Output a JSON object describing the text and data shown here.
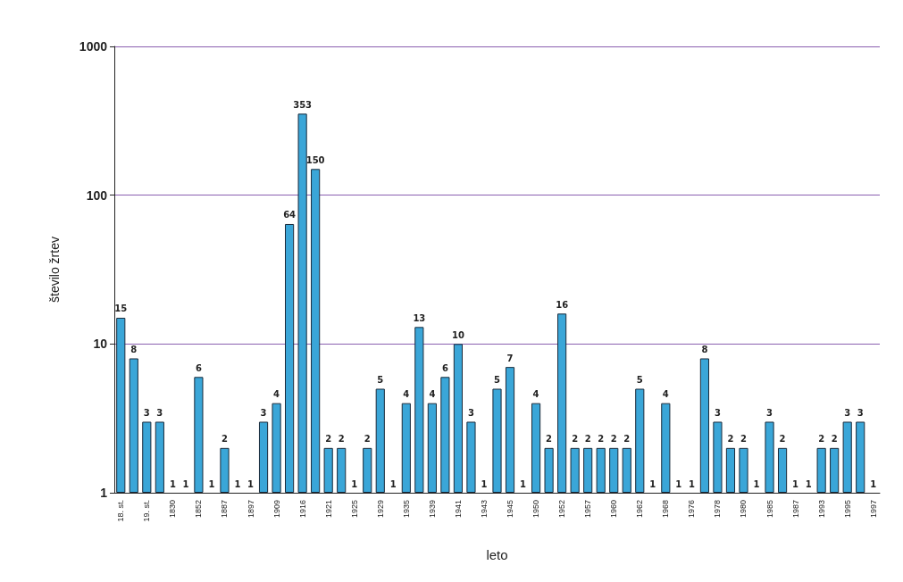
{
  "chart_data": {
    "type": "bar",
    "xlabel": "leto",
    "ylabel": "število žrtev",
    "categories": [
      "18. st.",
      null,
      "19. st.",
      null,
      "1830",
      null,
      "1852",
      null,
      "1887",
      null,
      "1897",
      null,
      "1909",
      null,
      "1916",
      null,
      "1921",
      null,
      "1925",
      null,
      "1929",
      null,
      "1935",
      null,
      "1939",
      null,
      "1941",
      null,
      "1943",
      null,
      "1945",
      null,
      "1950",
      null,
      "1952",
      null,
      "1957",
      null,
      "1960",
      null,
      "1962",
      null,
      "1968",
      null,
      "1976",
      null,
      "1978",
      null,
      "1980",
      null,
      "1985",
      null,
      "1987",
      null,
      "1993",
      null,
      "1995",
      null,
      "1997"
    ],
    "values": [
      15,
      8,
      3,
      3,
      1,
      1,
      6,
      1,
      2,
      1,
      1,
      3,
      4,
      64,
      353,
      150,
      2,
      2,
      1,
      2,
      5,
      1,
      4,
      13,
      4,
      6,
      10,
      3,
      1,
      5,
      7,
      1,
      4,
      2,
      16,
      2,
      2,
      2,
      2,
      2,
      5,
      1,
      4,
      1,
      1,
      8,
      3,
      2,
      2,
      1,
      3,
      2,
      1,
      1,
      2,
      2,
      3,
      3,
      1
    ],
    "color": "#3aa6d8",
    "log": true,
    "ylim": [
      1,
      1000
    ],
    "yticks": [
      1,
      10,
      100,
      1000
    ],
    "grid": "y",
    "data_labels": true
  }
}
